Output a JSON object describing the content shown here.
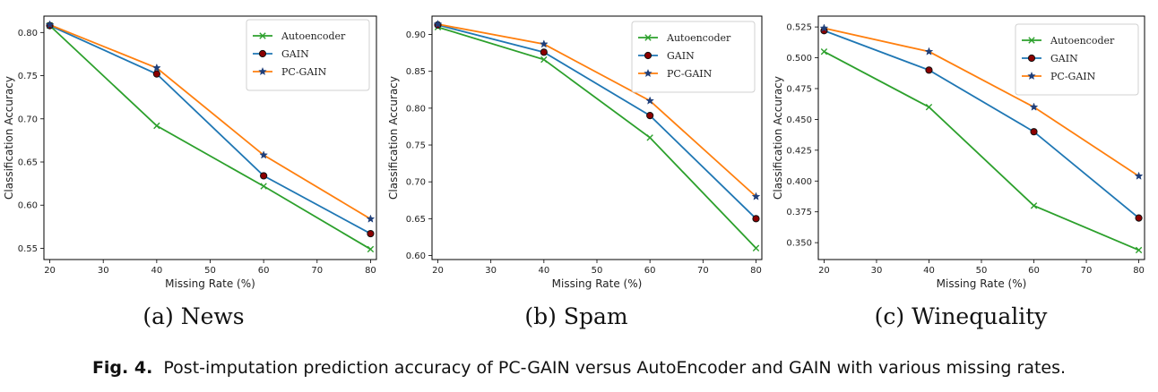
{
  "caption": {
    "label": "Fig. 4.",
    "text": "Post-imputation prediction accuracy of PC-GAIN versus AutoEncoder and GAIN with various missing rates."
  },
  "colors": {
    "Autoencoder": "#2ca02c",
    "GAIN": "#1f77b4",
    "PC-GAIN": "#ff7f0e"
  },
  "chart_data": [
    {
      "type": "line",
      "caption": "(a) News",
      "xlabel": "Missing Rate (%)",
      "ylabel": "Classification Accuracy",
      "x": [
        20,
        40,
        60,
        80
      ],
      "xticks": [
        20,
        30,
        40,
        50,
        60,
        70,
        80
      ],
      "xlim": [
        18.9,
        81.1
      ],
      "yticks": [
        0.55,
        0.6,
        0.65,
        0.7,
        0.75,
        0.8
      ],
      "ytick_labels": [
        "0.55",
        "0.60",
        "0.65",
        "0.70",
        "0.75",
        "0.80"
      ],
      "ylim": [
        0.537,
        0.819
      ],
      "legend": "top-right",
      "grid": false,
      "series": [
        {
          "name": "Autoencoder",
          "marker": "x",
          "values": [
            0.808,
            0.692,
            0.622,
            0.549
          ]
        },
        {
          "name": "GAIN",
          "marker": "circle",
          "values": [
            0.808,
            0.752,
            0.634,
            0.567
          ]
        },
        {
          "name": "PC-GAIN",
          "marker": "star",
          "values": [
            0.809,
            0.759,
            0.658,
            0.584
          ]
        }
      ]
    },
    {
      "type": "line",
      "caption": "(b) Spam",
      "xlabel": "Missing Rate (%)",
      "ylabel": "Classification Accuracy",
      "x": [
        20,
        40,
        60,
        80
      ],
      "xticks": [
        20,
        30,
        40,
        50,
        60,
        70,
        80
      ],
      "xlim": [
        18.9,
        81.1
      ],
      "yticks": [
        0.6,
        0.65,
        0.7,
        0.75,
        0.8,
        0.85,
        0.9
      ],
      "ytick_labels": [
        "0.60",
        "0.65",
        "0.70",
        "0.75",
        "0.80",
        "0.85",
        "0.90"
      ],
      "ylim": [
        0.5945,
        0.925
      ],
      "legend": "top-right",
      "grid": false,
      "series": [
        {
          "name": "Autoencoder",
          "marker": "x",
          "values": [
            0.91,
            0.866,
            0.76,
            0.61
          ]
        },
        {
          "name": "GAIN",
          "marker": "circle",
          "values": [
            0.913,
            0.876,
            0.79,
            0.65
          ]
        },
        {
          "name": "PC-GAIN",
          "marker": "star",
          "values": [
            0.914,
            0.887,
            0.81,
            0.68
          ]
        }
      ]
    },
    {
      "type": "line",
      "caption": "(c) Winequality",
      "xlabel": "Missing Rate (%)",
      "ylabel": "Classification Accuracy",
      "x": [
        20,
        40,
        60,
        80
      ],
      "xticks": [
        20,
        30,
        40,
        50,
        60,
        70,
        80
      ],
      "xlim": [
        18.9,
        81.1
      ],
      "yticks": [
        0.35,
        0.375,
        0.4,
        0.425,
        0.45,
        0.475,
        0.5,
        0.525
      ],
      "ytick_labels": [
        "0.350",
        "0.375",
        "0.400",
        "0.425",
        "0.450",
        "0.475",
        "0.500",
        "0.525"
      ],
      "ylim": [
        0.3363,
        0.5338
      ],
      "legend": "top-right",
      "grid": false,
      "series": [
        {
          "name": "Autoencoder",
          "marker": "x",
          "values": [
            0.505,
            0.46,
            0.38,
            0.344
          ]
        },
        {
          "name": "GAIN",
          "marker": "circle",
          "values": [
            0.522,
            0.49,
            0.44,
            0.37
          ]
        },
        {
          "name": "PC-GAIN",
          "marker": "star",
          "values": [
            0.524,
            0.505,
            0.46,
            0.404
          ]
        }
      ]
    }
  ]
}
